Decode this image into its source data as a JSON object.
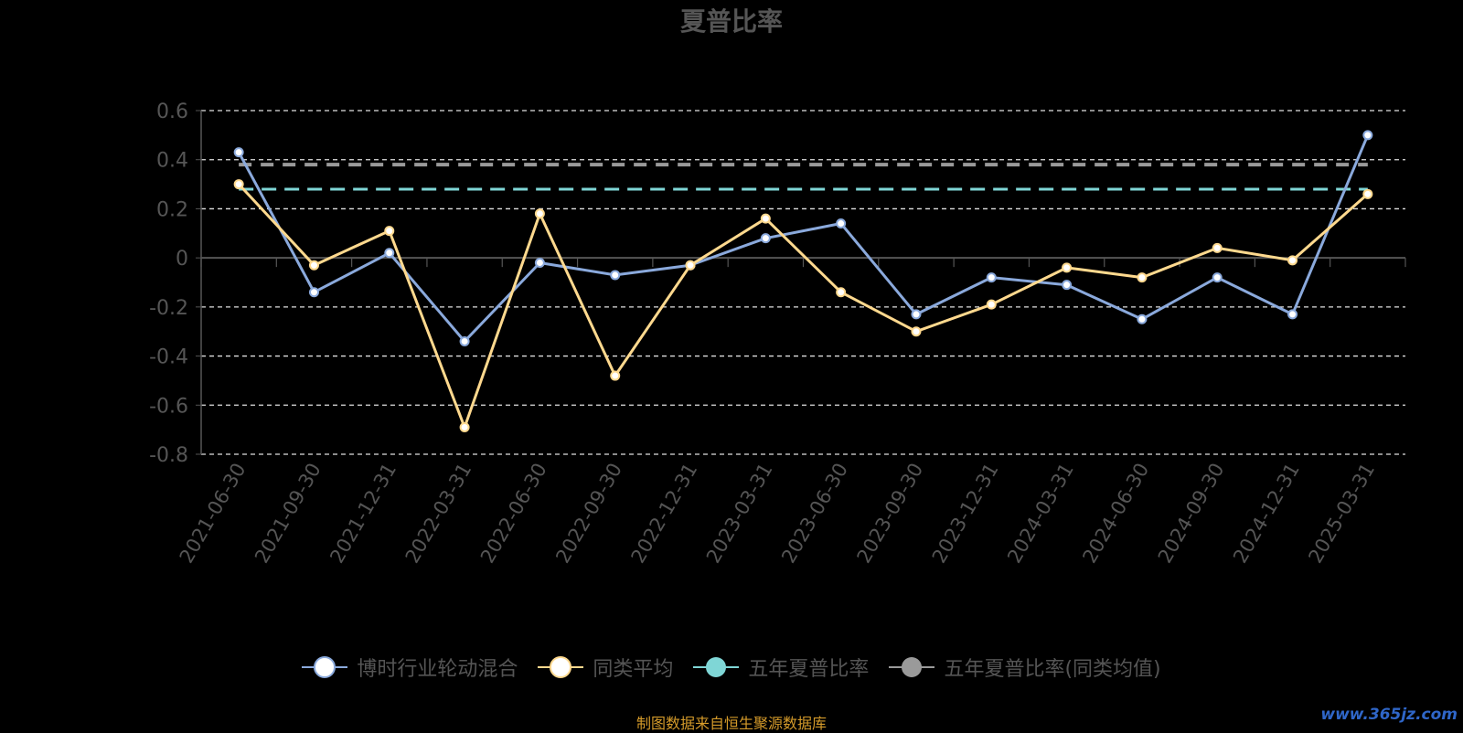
{
  "chart_data": {
    "type": "line",
    "title": "夏普比率",
    "categories": [
      "2021-06-30",
      "2021-09-30",
      "2021-12-31",
      "2022-03-31",
      "2022-06-30",
      "2022-09-30",
      "2022-12-31",
      "2023-03-31",
      "2023-06-30",
      "2023-09-30",
      "2023-12-31",
      "2024-03-31",
      "2024-06-30",
      "2024-09-30",
      "2024-12-31",
      "2025-03-31"
    ],
    "ylim": [
      -0.8,
      0.6
    ],
    "yticks": [
      "0.6",
      "0.4",
      "0.2",
      "0",
      "-0.2",
      "-0.4",
      "-0.6",
      "-0.8"
    ],
    "ytick_values": [
      0.6,
      0.4,
      0.2,
      0,
      -0.2,
      -0.4,
      -0.6,
      -0.8
    ],
    "grid": true,
    "legend_position": "bottom",
    "series": [
      {
        "name": "博时行业轮动混合",
        "color": "#8aa9dc",
        "values": [
          0.43,
          -0.14,
          0.02,
          -0.34,
          -0.02,
          -0.07,
          -0.03,
          0.08,
          0.14,
          -0.23,
          -0.08,
          -0.11,
          -0.25,
          -0.08,
          -0.23,
          0.5
        ]
      },
      {
        "name": "同类平均",
        "color": "#ffd98e",
        "values": [
          0.3,
          -0.03,
          0.11,
          -0.69,
          0.18,
          -0.48,
          -0.03,
          0.16,
          -0.14,
          -0.3,
          -0.19,
          -0.04,
          -0.08,
          0.04,
          -0.01,
          0.26
        ]
      },
      {
        "name": "五年夏普比率",
        "color": "#7fd6d6",
        "type": "reference",
        "value": 0.28
      },
      {
        "name": "五年夏普比率(同类均值)",
        "color": "#9a9a9a",
        "type": "reference",
        "value": 0.38
      }
    ]
  },
  "legend": {
    "items": [
      {
        "label": "博时行业轮动混合"
      },
      {
        "label": "同类平均"
      },
      {
        "label": "五年夏普比率"
      },
      {
        "label": "五年夏普比率(同类均值)"
      }
    ]
  },
  "source_note": "制图数据来自恒生聚源数据库",
  "watermark": "www.365jz.com"
}
